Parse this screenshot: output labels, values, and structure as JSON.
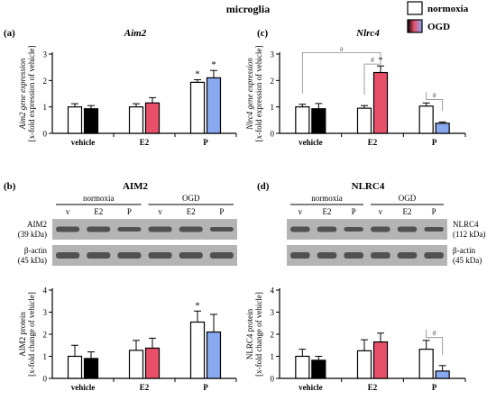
{
  "figure": {
    "title": "microglia",
    "legend": [
      {
        "label": "normoxia",
        "color": "#ffffff"
      },
      {
        "label": "OGD",
        "color": "#e8506a"
      }
    ]
  },
  "panels": {
    "a": {
      "label": "(a)",
      "title": "Aim2"
    },
    "b": {
      "label": "(b)",
      "title": "AIM2",
      "blot": {
        "groups": [
          "normoxia",
          "OGD"
        ],
        "lanes": [
          "v",
          "E2",
          "P",
          "v",
          "E2",
          "P"
        ],
        "rows": [
          {
            "protein": "AIM2",
            "size": "(39 kDa)"
          },
          {
            "protein": "β-actin",
            "size": "(45 kDa)"
          }
        ]
      }
    },
    "c": {
      "label": "(c)",
      "title": "Nlrc4"
    },
    "d": {
      "label": "(d)",
      "title": "NLRC4",
      "blot": {
        "groups": [
          "normoxia",
          "OGD"
        ],
        "lanes": [
          "v",
          "E2",
          "P",
          "v",
          "E2",
          "P"
        ],
        "rows": [
          {
            "protein": "NLRC4",
            "size": "(112 kDa)"
          },
          {
            "protein": "β-actin",
            "size": "(45 kDa)"
          }
        ]
      }
    }
  },
  "chart_data": [
    {
      "id": "a",
      "type": "bar",
      "title": "Aim2",
      "ylabel": "Aim2 gene expression",
      "ylabel2": "[x-fold expression of vehicle]",
      "categories": [
        "vehicle",
        "E2",
        "P"
      ],
      "ylim": [
        0,
        3
      ],
      "yticks": [
        0,
        1,
        2,
        3
      ],
      "series": [
        {
          "values": [
            1.0,
            1.0,
            1.93
          ],
          "errors": [
            0.12,
            0.12,
            0.1
          ]
        },
        {
          "values": [
            0.93,
            1.15,
            2.1
          ],
          "errors": [
            0.12,
            0.2,
            0.28
          ]
        }
      ],
      "annotations": [
        {
          "category": 2,
          "series": 0,
          "text": "*"
        },
        {
          "category": 2,
          "series": 1,
          "text": "*"
        }
      ],
      "brackets": []
    },
    {
      "id": "b",
      "type": "bar",
      "title": "AIM2",
      "ylabel": "AIM2 protein",
      "ylabel2": "[x-fold change of vehicle]",
      "categories": [
        "vehicle",
        "E2",
        "P"
      ],
      "ylim": [
        0,
        4
      ],
      "yticks": [
        0,
        1,
        2,
        3,
        4
      ],
      "series": [
        {
          "values": [
            1.0,
            1.27,
            2.55
          ],
          "errors": [
            0.5,
            0.45,
            0.5
          ]
        },
        {
          "values": [
            0.9,
            1.37,
            2.1
          ],
          "errors": [
            0.3,
            0.45,
            0.8
          ]
        }
      ],
      "annotations": [
        {
          "category": 2,
          "series": 0,
          "text": "*"
        }
      ],
      "brackets": []
    },
    {
      "id": "c",
      "type": "bar",
      "title": "Nlrc4",
      "ylabel": "Nlrc4 gene expression",
      "ylabel2": "[x-fold expression of vehicle]",
      "categories": [
        "vehicle",
        "E2",
        "P"
      ],
      "ylim": [
        0,
        3
      ],
      "yticks": [
        0,
        1,
        2,
        3
      ],
      "series": [
        {
          "values": [
            1.0,
            0.95,
            1.03
          ],
          "errors": [
            0.1,
            0.1,
            0.12
          ]
        },
        {
          "values": [
            0.93,
            2.3,
            0.38
          ],
          "errors": [
            0.2,
            0.25,
            0.05
          ]
        }
      ],
      "annotations": [
        {
          "category": 1,
          "series": 1,
          "text": "*"
        }
      ],
      "brackets": [
        {
          "text": "a",
          "from": [
            0,
            0
          ],
          "to": [
            1,
            1
          ],
          "level": 3.05
        },
        {
          "text": "#",
          "from": [
            1,
            0
          ],
          "to": [
            1,
            1
          ],
          "level": 2.62
        },
        {
          "text": "#",
          "from": [
            2,
            0
          ],
          "to": [
            2,
            1
          ],
          "level": 1.28
        }
      ]
    },
    {
      "id": "d",
      "type": "bar",
      "title": "NLRC4",
      "ylabel": "NLRC4 protein",
      "ylabel2": "[x-fold change of vehicle]",
      "categories": [
        "vehicle",
        "E2",
        "P"
      ],
      "ylim": [
        0,
        4
      ],
      "yticks": [
        0,
        1,
        2,
        3,
        4
      ],
      "series": [
        {
          "values": [
            1.0,
            1.25,
            1.32
          ],
          "errors": [
            0.32,
            0.5,
            0.4
          ]
        },
        {
          "values": [
            0.82,
            1.65,
            0.33
          ],
          "errors": [
            0.18,
            0.4,
            0.25
          ]
        }
      ],
      "annotations": [],
      "brackets": [
        {
          "text": "#",
          "from": [
            2,
            0
          ],
          "to": [
            2,
            1
          ],
          "level": 1.85
        }
      ]
    }
  ],
  "colors": {
    "vehicle_ogd": "#000000",
    "e2_ogd": "#e8506a",
    "p_ogd": "#88a8f0",
    "normoxia": "#ffffff",
    "blot_background": "#b4b4b4",
    "blot_band": "#404040"
  }
}
